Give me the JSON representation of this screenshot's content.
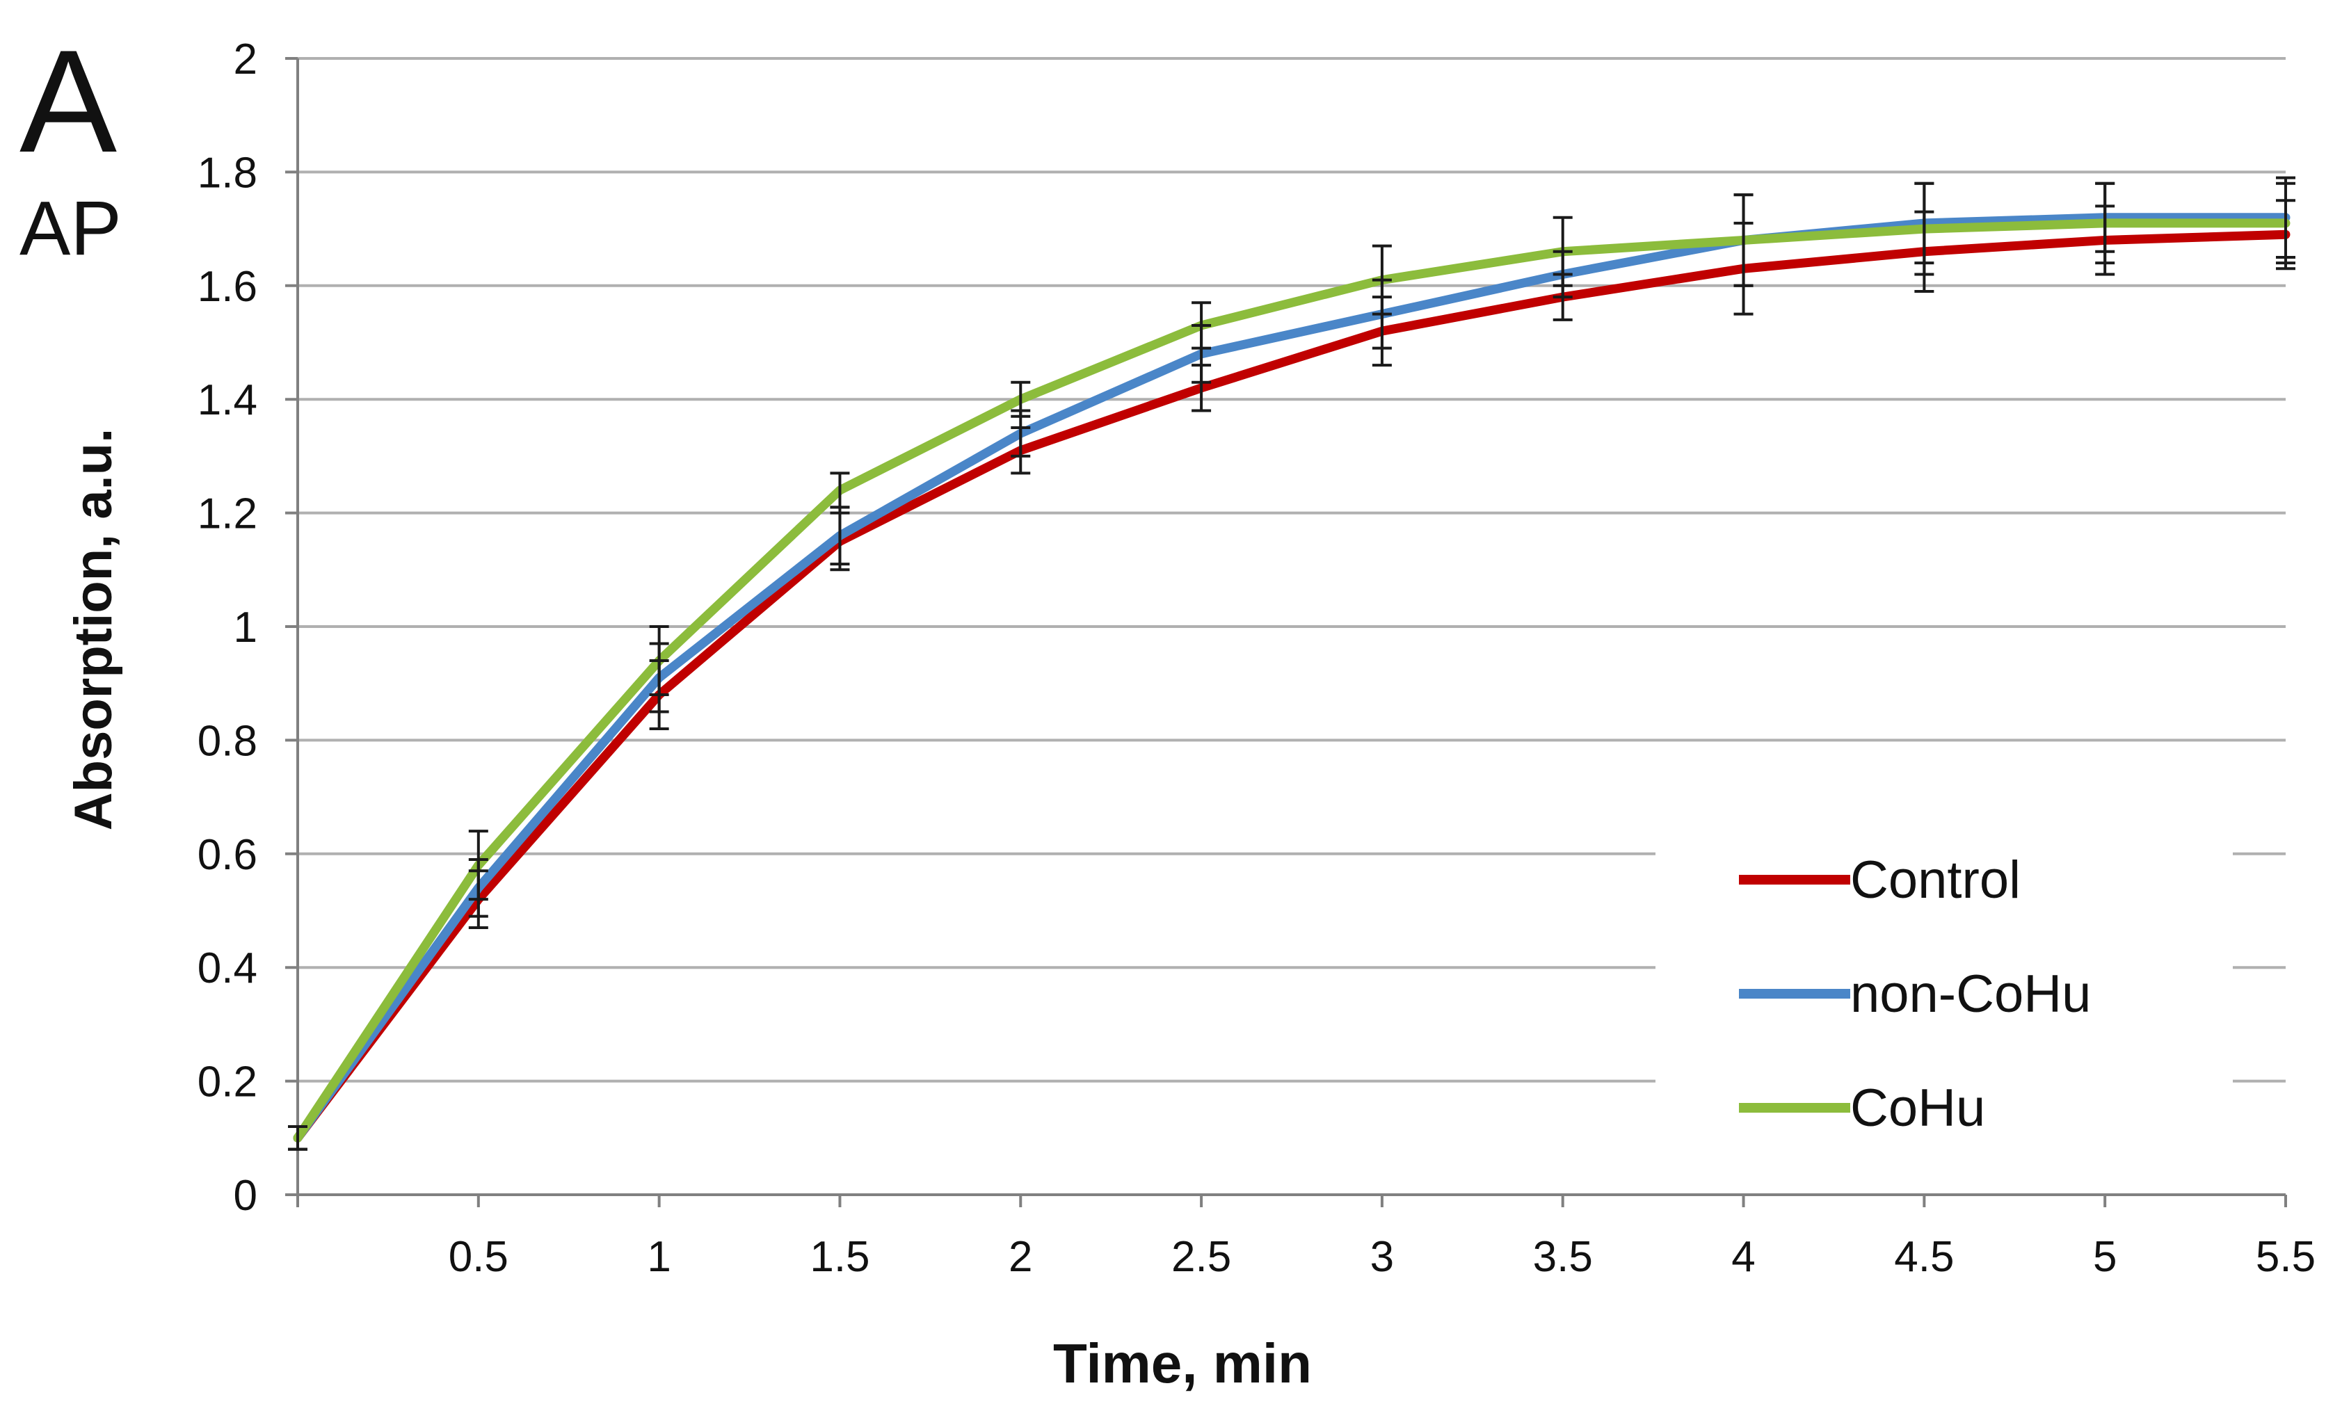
{
  "panel": {
    "letter": "A",
    "sublabel": "AP"
  },
  "colors": {
    "control": "#c00000",
    "non_cohu": "#4a86c8",
    "cohu": "#8cbc3c",
    "grid": "#b0b0b0",
    "axis": "#808080",
    "error_bar": "#1a1a1a",
    "text": "#111111"
  },
  "chart_data": {
    "type": "line",
    "title": "",
    "xlabel": "Time, min",
    "ylabel": "Absorption, a.u.",
    "xlim": [
      0,
      5.5
    ],
    "ylim": [
      0,
      2
    ],
    "x_ticks": [
      "0.5",
      "1",
      "1.5",
      "2",
      "2.5",
      "3",
      "3.5",
      "4",
      "4.5",
      "5",
      "5.5"
    ],
    "y_ticks": [
      "0",
      "0.2",
      "0.4",
      "0.6",
      "0.8",
      "1",
      "1.2",
      "1.4",
      "1.6",
      "1.8",
      "2"
    ],
    "grid": "horizontal",
    "legend_position": "bottom-right",
    "x": [
      0,
      0.5,
      1,
      1.5,
      2,
      2.5,
      3,
      3.5,
      4,
      4.5,
      5,
      5.5
    ],
    "series": [
      {
        "name": "Control",
        "color": "#c00000",
        "values": [
          0.1,
          0.52,
          0.88,
          1.15,
          1.31,
          1.42,
          1.52,
          1.58,
          1.63,
          1.66,
          1.68,
          1.69
        ],
        "errors": [
          0.02,
          0.05,
          0.06,
          0.05,
          0.04,
          0.04,
          0.06,
          0.04,
          0.08,
          0.07,
          0.06,
          0.06
        ]
      },
      {
        "name": "non-CoHu",
        "color": "#4a86c8",
        "values": [
          0.1,
          0.54,
          0.91,
          1.16,
          1.34,
          1.48,
          1.55,
          1.62,
          1.68,
          1.71,
          1.72,
          1.72
        ],
        "errors": [
          0.02,
          0.05,
          0.06,
          0.05,
          0.04,
          0.05,
          0.06,
          0.04,
          0.08,
          0.07,
          0.06,
          0.07
        ]
      },
      {
        "name": "CoHu",
        "color": "#8cbc3c",
        "values": [
          0.1,
          0.58,
          0.94,
          1.24,
          1.4,
          1.53,
          1.61,
          1.66,
          1.68,
          1.7,
          1.71,
          1.71
        ],
        "errors": [
          0.02,
          0.06,
          0.06,
          0.03,
          0.03,
          0.04,
          0.06,
          0.06,
          0.08,
          0.08,
          0.07,
          0.07
        ]
      }
    ]
  }
}
